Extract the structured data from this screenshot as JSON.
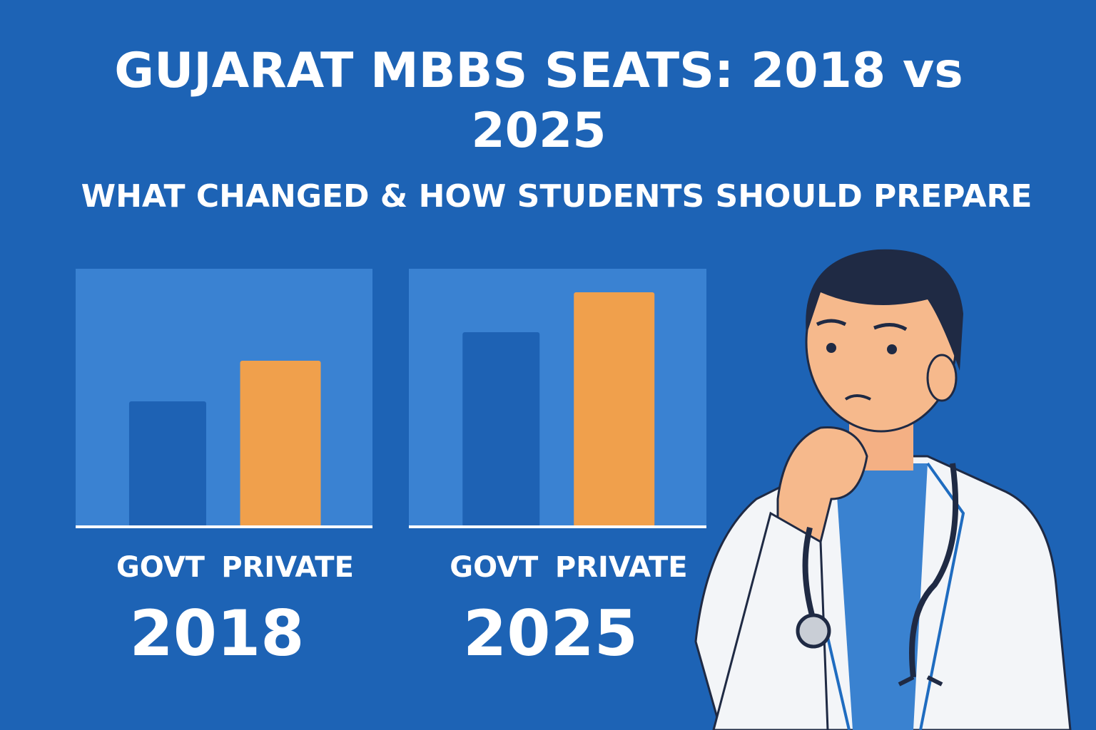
{
  "header": {
    "title": "GUJARAT MBBS SEATS: 2018 vs 2025",
    "subtitle": "WHAT CHANGED & HOW STUDENTS SHOULD PREPARE"
  },
  "chart_data": [
    {
      "type": "bar",
      "label": "2018",
      "categories": [
        "GOVT",
        "PRIVATE"
      ],
      "values": [
        176,
        233
      ],
      "colors": [
        "#1e62b4",
        "#f0a04c"
      ],
      "ylim": [
        0,
        362
      ]
    },
    {
      "type": "bar",
      "label": "2025",
      "categories": [
        "GOVT",
        "PRIVATE"
      ],
      "values": [
        273,
        329
      ],
      "colors": [
        "#1e62b4",
        "#f0a04c"
      ],
      "ylim": [
        0,
        362
      ]
    }
  ]
}
